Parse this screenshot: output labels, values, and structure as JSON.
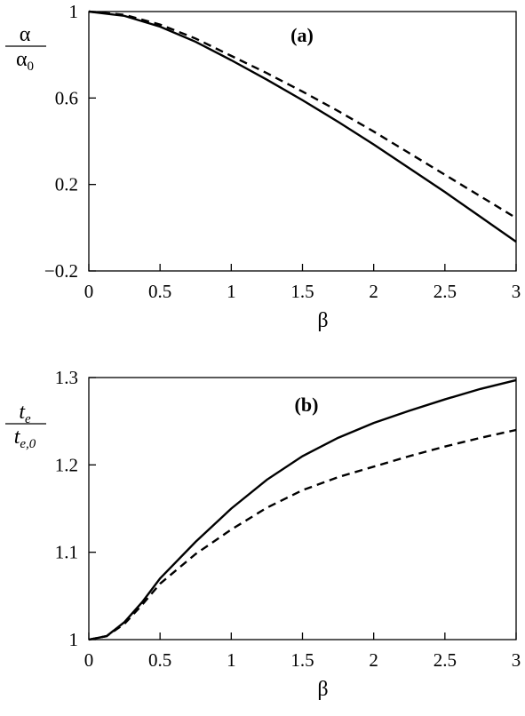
{
  "chart_data": [
    {
      "type": "line",
      "annotation": "(a)",
      "xlabel": "β",
      "ylabel_numerator": "α",
      "ylabel_denominator": "α",
      "ylabel_denominator_sub": "0",
      "x": [
        0,
        0.25,
        0.5,
        0.75,
        1,
        1.25,
        1.5,
        1.75,
        2,
        2.25,
        2.5,
        2.75,
        3
      ],
      "series": [
        {
          "color": "#000000",
          "dash": "solid",
          "values": [
            1,
            0.98,
            0.93,
            0.86,
            0.775,
            0.685,
            0.59,
            0.49,
            0.385,
            0.275,
            0.165,
            0.05,
            -0.065
          ]
        },
        {
          "color": "#000000",
          "dash": "dashed",
          "values": [
            1,
            0.985,
            0.94,
            0.875,
            0.795,
            0.715,
            0.63,
            0.54,
            0.445,
            0.345,
            0.245,
            0.145,
            0.045
          ]
        }
      ],
      "xlim": [
        0,
        3
      ],
      "xticks": [
        0,
        0.5,
        1,
        1.5,
        2,
        2.5,
        3
      ],
      "ylim": [
        -0.2,
        1
      ],
      "yticks": [
        {
          "value": -0.2,
          "label": "−0.2"
        },
        0.2,
        0.6,
        1
      ]
    },
    {
      "type": "line",
      "annotation": "(b)",
      "xlabel": "β",
      "ylabel_numerator": "t",
      "ylabel_numerator_sub": "e",
      "ylabel_denominator": "t",
      "ylabel_denominator_sub": "e,0",
      "x": [
        0,
        0.125,
        0.25,
        0.375,
        0.5,
        0.75,
        1,
        1.25,
        1.5,
        1.75,
        2,
        2.25,
        2.5,
        2.75,
        3
      ],
      "series": [
        {
          "color": "#000000",
          "dash": "solid",
          "values": [
            1,
            1.004,
            1.02,
            1.043,
            1.07,
            1.112,
            1.15,
            1.183,
            1.21,
            1.231,
            1.248,
            1.262,
            1.275,
            1.287,
            1.297
          ]
        },
        {
          "color": "#000000",
          "dash": "dashed",
          "values": [
            1,
            1.004,
            1.018,
            1.04,
            1.064,
            1.098,
            1.126,
            1.151,
            1.171,
            1.186,
            1.198,
            1.21,
            1.221,
            1.231,
            1.24
          ]
        }
      ],
      "xlim": [
        0,
        3
      ],
      "xticks": [
        0,
        0.5,
        1,
        1.5,
        2,
        2.5,
        3
      ],
      "ylim": [
        1,
        1.3
      ],
      "yticks": [
        1,
        1.1,
        1.2,
        1.3
      ]
    }
  ]
}
